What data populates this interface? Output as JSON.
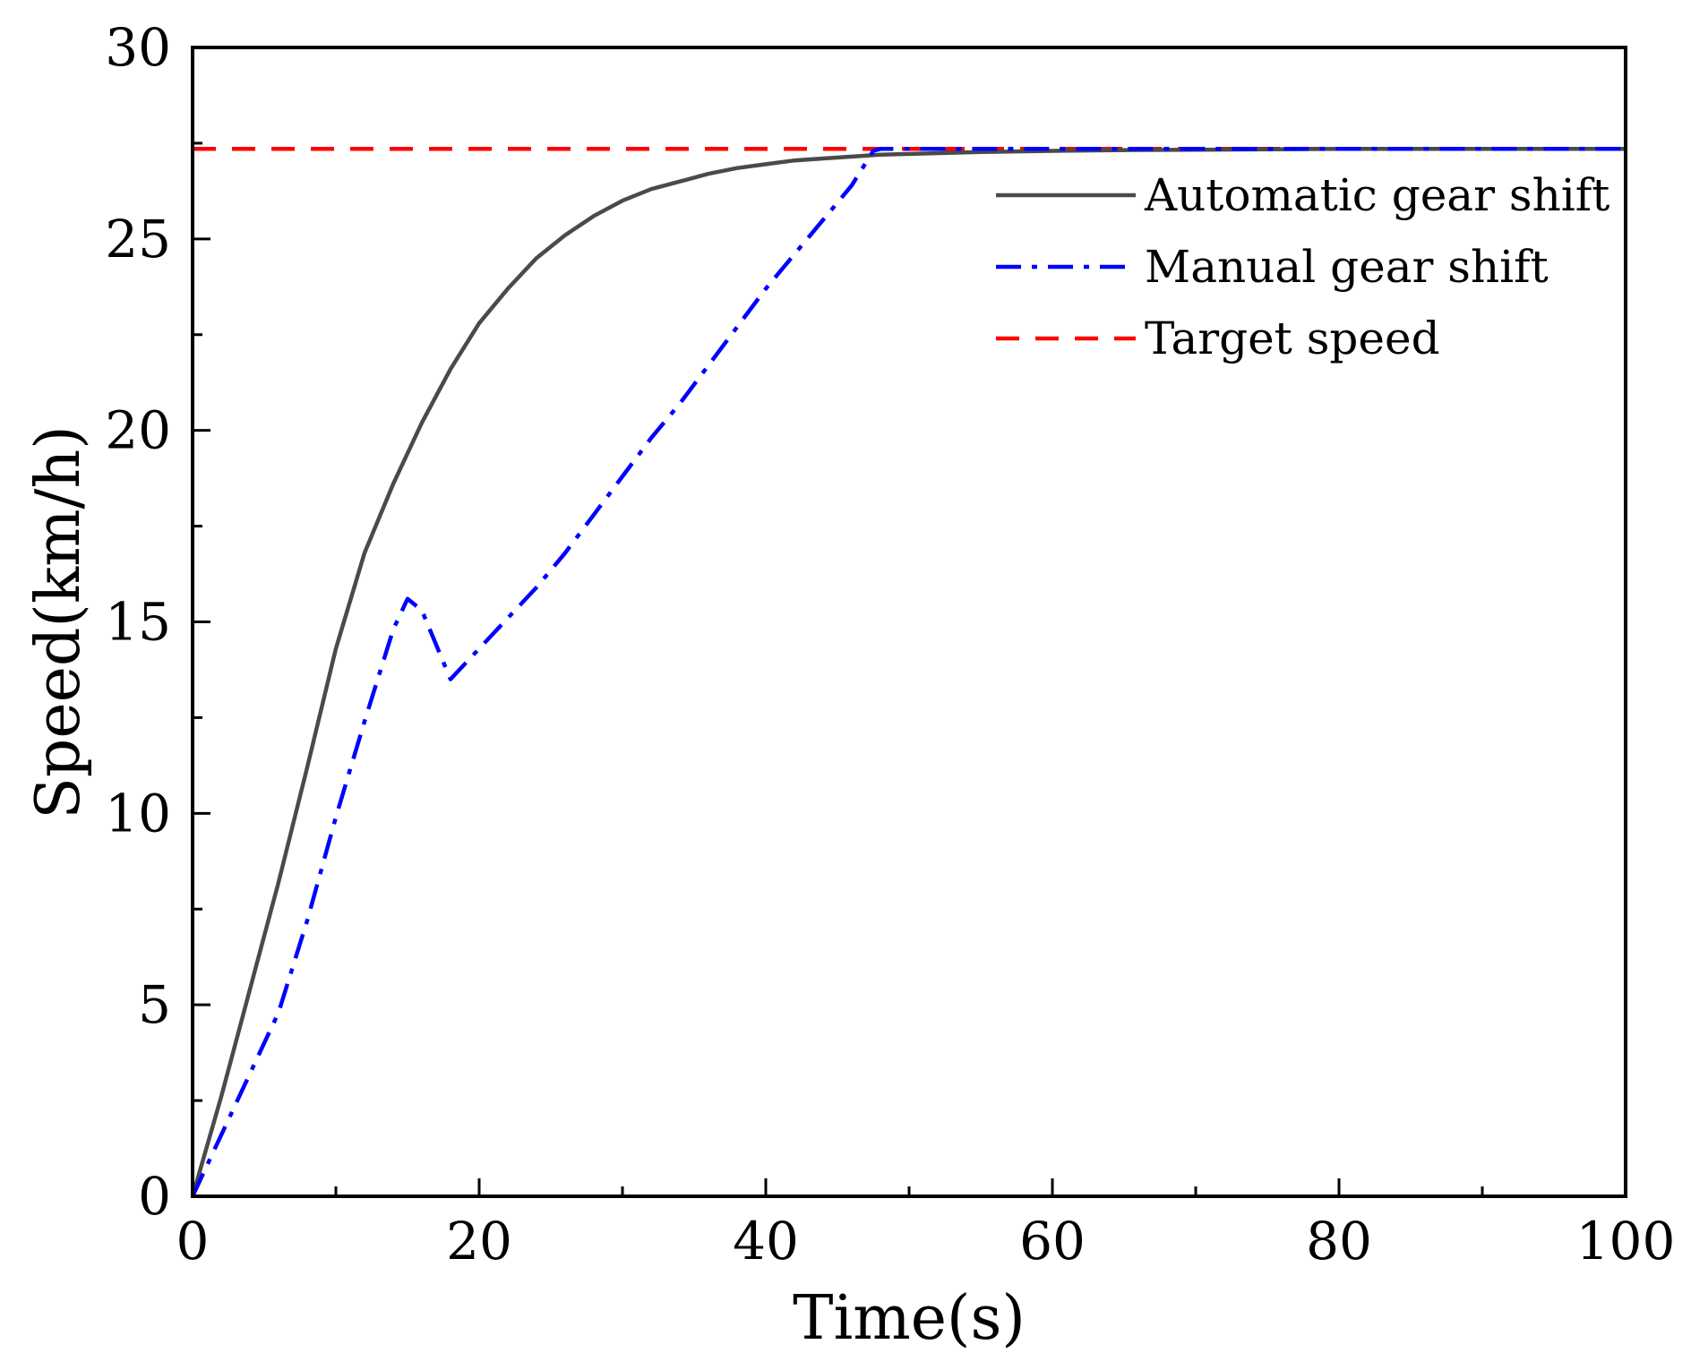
{
  "chart_data": {
    "type": "line",
    "title": "",
    "xlabel": "Time(s)",
    "ylabel": "Speed(km/h)",
    "xlim": [
      0,
      100
    ],
    "ylim": [
      0,
      30
    ],
    "xticks": [
      0,
      20,
      40,
      60,
      80,
      100
    ],
    "xtick_labels": [
      "0",
      "20",
      "40",
      "60",
      "80",
      "100"
    ],
    "yticks": [
      0,
      5,
      10,
      15,
      20,
      25,
      30
    ],
    "ytick_labels": [
      "0",
      "5",
      "10",
      "15",
      "20",
      "25",
      "30"
    ],
    "x_minor_step": 10,
    "y_minor_step": 2.5,
    "grid": false,
    "legend_position": "top-right",
    "series": [
      {
        "name": "Automatic gear shift",
        "color": "#4a4a4a",
        "style": "solid",
        "x": [
          0,
          2,
          4,
          6,
          8,
          10,
          12,
          14,
          16,
          18,
          20,
          22,
          24,
          26,
          28,
          30,
          32,
          34,
          36,
          38,
          40,
          42,
          44,
          46,
          48,
          50,
          55,
          60,
          65,
          70,
          80,
          90,
          100
        ],
        "y": [
          0,
          2.6,
          5.4,
          8.2,
          11.2,
          14.3,
          16.8,
          18.6,
          20.2,
          21.6,
          22.8,
          23.7,
          24.5,
          25.1,
          25.6,
          26.0,
          26.3,
          26.5,
          26.7,
          26.85,
          26.95,
          27.05,
          27.1,
          27.15,
          27.2,
          27.22,
          27.27,
          27.3,
          27.32,
          27.33,
          27.35,
          27.35,
          27.35
        ]
      },
      {
        "name": "Manual gear shift",
        "color": "#0000ff",
        "style": "dashdot",
        "x": [
          0,
          2,
          4,
          6,
          8,
          10,
          12,
          14,
          15,
          16,
          18,
          20,
          22,
          24,
          26,
          28,
          30,
          32,
          34,
          36,
          38,
          40,
          42,
          44,
          46,
          47.5,
          48,
          50,
          60,
          70,
          80,
          90,
          100
        ],
        "y": [
          0,
          1.6,
          3.2,
          4.8,
          7.2,
          9.9,
          12.4,
          14.8,
          15.6,
          15.3,
          13.5,
          14.3,
          15.1,
          15.9,
          16.8,
          17.8,
          18.8,
          19.8,
          20.7,
          21.7,
          22.7,
          23.7,
          24.6,
          25.5,
          26.4,
          27.3,
          27.35,
          27.35,
          27.35,
          27.35,
          27.35,
          27.35,
          27.35
        ]
      },
      {
        "name": "Target speed",
        "color": "#ff0000",
        "style": "dashed",
        "x": [
          0,
          100
        ],
        "y": [
          27.35,
          27.35
        ]
      }
    ]
  }
}
